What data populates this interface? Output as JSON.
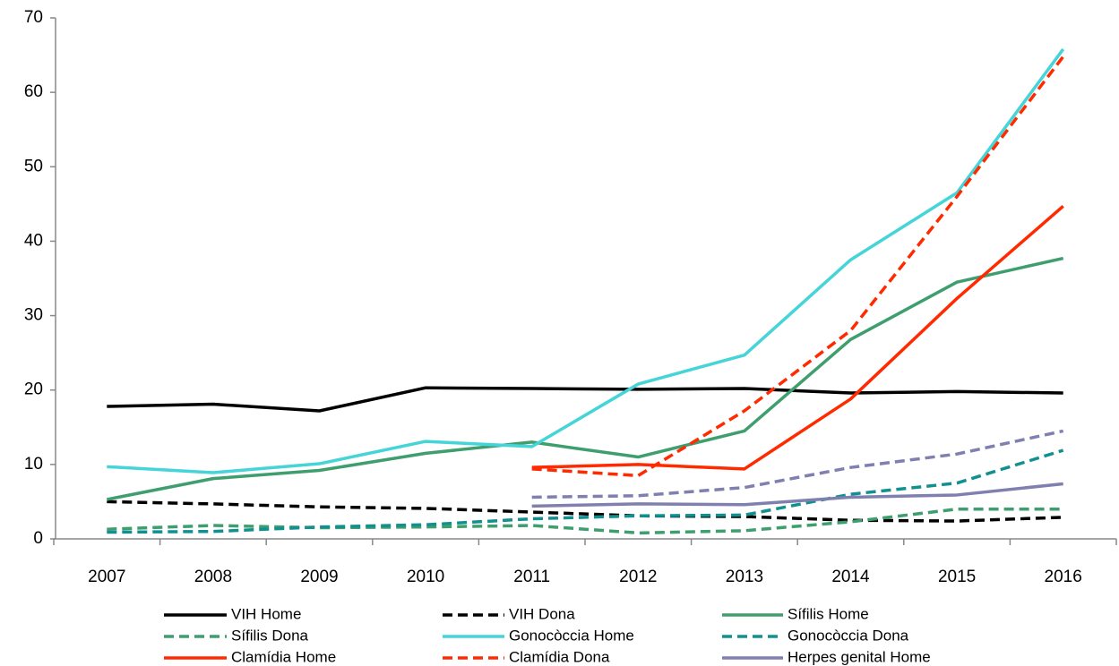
{
  "chart_data": {
    "type": "line",
    "categories": [
      "2007",
      "2008",
      "2009",
      "2010",
      "2011",
      "2012",
      "2013",
      "2014",
      "2015",
      "2016"
    ],
    "ylim": [
      0,
      70
    ],
    "yticks": [
      0,
      10,
      20,
      30,
      40,
      50,
      60,
      70
    ],
    "grid": false,
    "series": [
      {
        "name": "VIH Home",
        "color": "#000000",
        "dashed": false,
        "values": [
          17.8,
          18.1,
          17.2,
          20.3,
          20.2,
          20.1,
          20.2,
          19.6,
          19.8,
          19.6
        ]
      },
      {
        "name": "VIH Dona",
        "color": "#000000",
        "dashed": true,
        "values": [
          5.0,
          4.7,
          4.3,
          4.1,
          3.6,
          3.1,
          3.0,
          2.5,
          2.4,
          2.9
        ]
      },
      {
        "name": "Sífilis Home",
        "color": "#3f9e6e",
        "dashed": false,
        "values": [
          5.3,
          8.1,
          9.2,
          11.5,
          13.0,
          11.0,
          14.5,
          26.8,
          34.5,
          37.7
        ]
      },
      {
        "name": "Sífilis Dona",
        "color": "#3f9e6e",
        "dashed": true,
        "values": [
          1.3,
          1.8,
          1.5,
          1.6,
          1.8,
          0.8,
          1.1,
          2.3,
          4.0,
          4.0
        ]
      },
      {
        "name": "Gonocòccia Home",
        "color": "#45d4d8",
        "dashed": false,
        "values": [
          9.7,
          8.9,
          10.1,
          13.1,
          12.4,
          20.8,
          24.7,
          37.5,
          46.5,
          65.8
        ]
      },
      {
        "name": "Gonocòccia Dona",
        "color": "#11908f",
        "dashed": true,
        "values": [
          0.9,
          1.0,
          1.6,
          1.9,
          2.7,
          3.1,
          3.2,
          6.0,
          7.5,
          11.9
        ]
      },
      {
        "name": "Clamídia Home",
        "color": "#ff2a00",
        "dashed": false,
        "values": [
          null,
          null,
          null,
          null,
          9.6,
          10.0,
          9.4,
          18.8,
          32.3,
          44.7
        ]
      },
      {
        "name": "Clamídia Dona",
        "color": "#ff2a00",
        "dashed": true,
        "values": [
          null,
          null,
          null,
          null,
          9.4,
          8.5,
          17.2,
          28.0,
          46.0,
          64.8
        ]
      },
      {
        "name": "Herpes genital Home",
        "color": "#7f7fb0",
        "dashed": false,
        "values": [
          null,
          null,
          null,
          null,
          4.4,
          4.7,
          4.6,
          5.6,
          5.9,
          7.4
        ]
      },
      {
        "color": "#7f7fb0",
        "dashed": true,
        "values": [
          null,
          null,
          null,
          null,
          5.6,
          5.8,
          6.9,
          9.6,
          11.4,
          14.5
        ]
      }
    ]
  }
}
